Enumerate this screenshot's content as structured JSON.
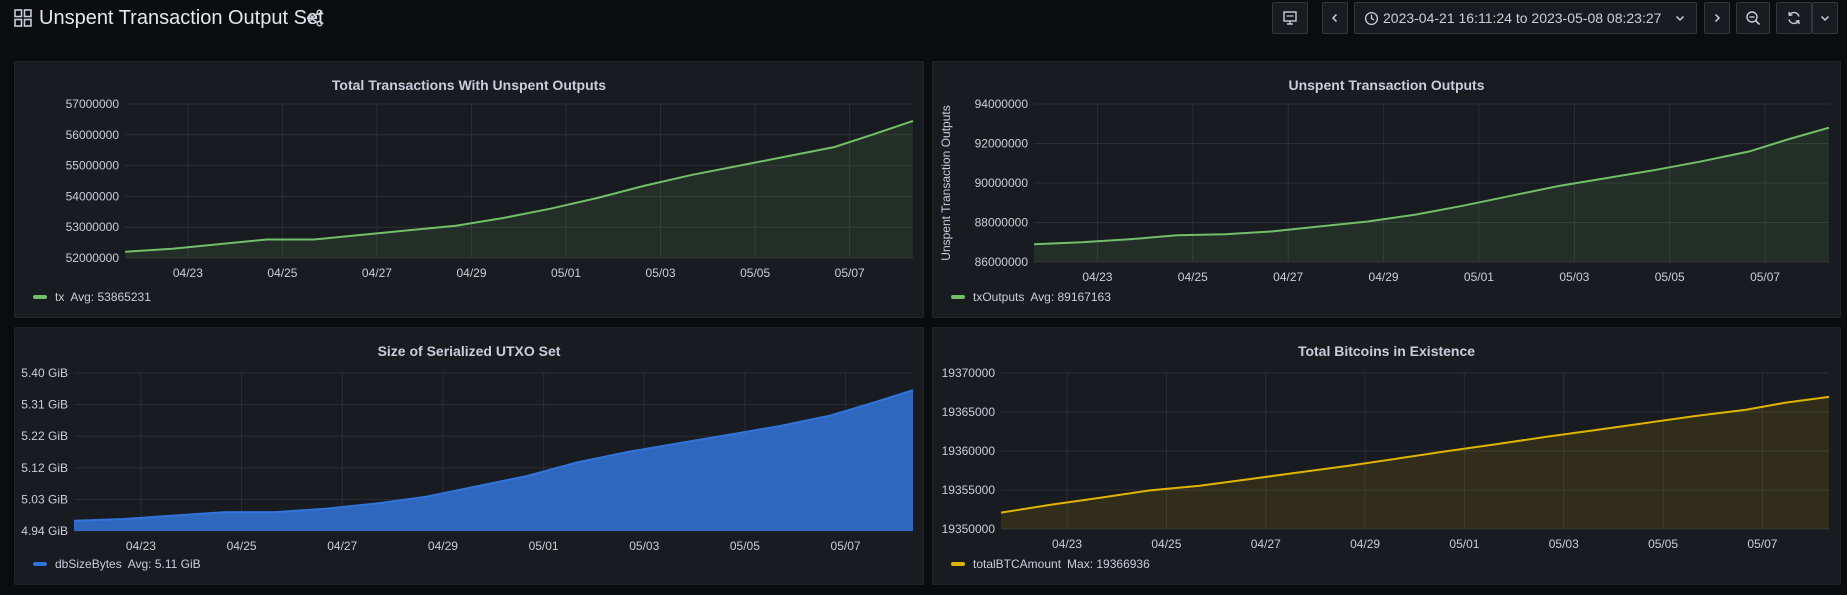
{
  "header": {
    "title": "Unspent Transaction Output Set",
    "time_range": "2023-04-21 16:11:24 to 2023-05-08 08:23:27"
  },
  "icons": [
    "apps-icon",
    "share-icon",
    "tv-mode-icon",
    "chevron-left-icon",
    "clock-icon",
    "chevron-down-icon",
    "chevron-right-icon",
    "zoom-out-icon",
    "refresh-icon",
    "chevron-down-icon"
  ],
  "chart_data": [
    {
      "type": "area",
      "title": "Total Transactions With Unspent Outputs",
      "ylabel": "",
      "x_ticks": [
        "04/23",
        "04/25",
        "04/27",
        "04/29",
        "05/01",
        "05/03",
        "05/05",
        "05/07"
      ],
      "y_ticks": [
        "52000000",
        "53000000",
        "54000000",
        "55000000",
        "56000000",
        "57000000"
      ],
      "ylim": [
        52000000,
        57000000
      ],
      "xlim": [
        0,
        16.67
      ],
      "color": "#73bf69",
      "series": [
        {
          "name": "tx",
          "x": [
            0,
            1,
            2,
            3,
            4,
            5,
            6,
            7,
            8,
            9,
            10,
            11,
            12,
            13,
            14,
            15,
            15.8,
            16.67
          ],
          "values": [
            52200000,
            52300000,
            52450000,
            52600000,
            52600000,
            52750000,
            52900000,
            53050000,
            53300000,
            53600000,
            53950000,
            54350000,
            54700000,
            55000000,
            55300000,
            55600000,
            56000000,
            56450000
          ]
        }
      ],
      "legend": {
        "name": "tx",
        "stat": "Avg: 53865231"
      }
    },
    {
      "type": "area",
      "title": "Unspent Transaction Outputs",
      "ylabel": "Unspent Transaction Outputs",
      "x_ticks": [
        "04/23",
        "04/25",
        "04/27",
        "04/29",
        "05/01",
        "05/03",
        "05/05",
        "05/07"
      ],
      "y_ticks": [
        "86000000",
        "88000000",
        "90000000",
        "92000000",
        "94000000"
      ],
      "ylim": [
        86000000,
        94000000
      ],
      "xlim": [
        0,
        16.67
      ],
      "color": "#73bf69",
      "series": [
        {
          "name": "txOutputs",
          "x": [
            0,
            1,
            2,
            3,
            4,
            5,
            6,
            7,
            8,
            9,
            10,
            11,
            12,
            13,
            14,
            15,
            15.8,
            16.67
          ],
          "values": [
            86900000,
            87000000,
            87150000,
            87350000,
            87400000,
            87550000,
            87800000,
            88050000,
            88400000,
            88850000,
            89350000,
            89850000,
            90250000,
            90650000,
            91100000,
            91600000,
            92200000,
            92800000
          ]
        }
      ],
      "legend": {
        "name": "txOutputs",
        "stat": "Avg: 89167163"
      }
    },
    {
      "type": "area",
      "title": "Size of Serialized UTXO Set",
      "ylabel": "",
      "x_ticks": [
        "04/23",
        "04/25",
        "04/27",
        "04/29",
        "05/01",
        "05/03",
        "05/05",
        "05/07"
      ],
      "y_ticks": [
        "4.94 GiB",
        "5.03 GiB",
        "5.12 GiB",
        "5.22 GiB",
        "5.31 GiB",
        "5.40 GiB"
      ],
      "ylim": [
        4.94,
        5.4
      ],
      "xlim": [
        0,
        16.67
      ],
      "color": "#3274d9",
      "series": [
        {
          "name": "dbSizeBytes",
          "x": [
            0,
            1,
            2,
            3,
            4,
            5,
            6,
            7,
            8,
            9,
            10,
            11,
            12,
            13,
            14,
            15,
            15.8,
            16.67
          ],
          "values": [
            4.97,
            4.975,
            4.985,
            4.995,
            4.995,
            5.005,
            5.02,
            5.04,
            5.07,
            5.1,
            5.14,
            5.17,
            5.195,
            5.22,
            5.245,
            5.275,
            5.31,
            5.35
          ]
        }
      ],
      "legend": {
        "name": "dbSizeBytes",
        "stat": "Avg: 5.11 GiB"
      }
    },
    {
      "type": "area",
      "title": "Total Bitcoins in Existence",
      "ylabel": "",
      "x_ticks": [
        "04/23",
        "04/25",
        "04/27",
        "04/29",
        "05/01",
        "05/03",
        "05/05",
        "05/07"
      ],
      "y_ticks": [
        "19350000",
        "19355000",
        "19360000",
        "19365000",
        "19370000"
      ],
      "ylim": [
        19350000,
        19370000
      ],
      "xlim": [
        0,
        16.67
      ],
      "color": "#e0b400",
      "series": [
        {
          "name": "totalBTCAmount",
          "x": [
            0,
            1,
            2,
            3,
            4,
            5,
            6,
            7,
            8,
            9,
            10,
            11,
            12,
            13,
            14,
            15,
            15.8,
            16.67
          ],
          "values": [
            19352100,
            19353100,
            19354000,
            19354950,
            19355550,
            19356400,
            19357250,
            19358100,
            19359050,
            19360000,
            19360900,
            19361850,
            19362700,
            19363600,
            19364500,
            19365300,
            19366200,
            19366936
          ]
        }
      ],
      "legend": {
        "name": "totalBTCAmount",
        "stat": "Max: 19366936"
      }
    }
  ]
}
